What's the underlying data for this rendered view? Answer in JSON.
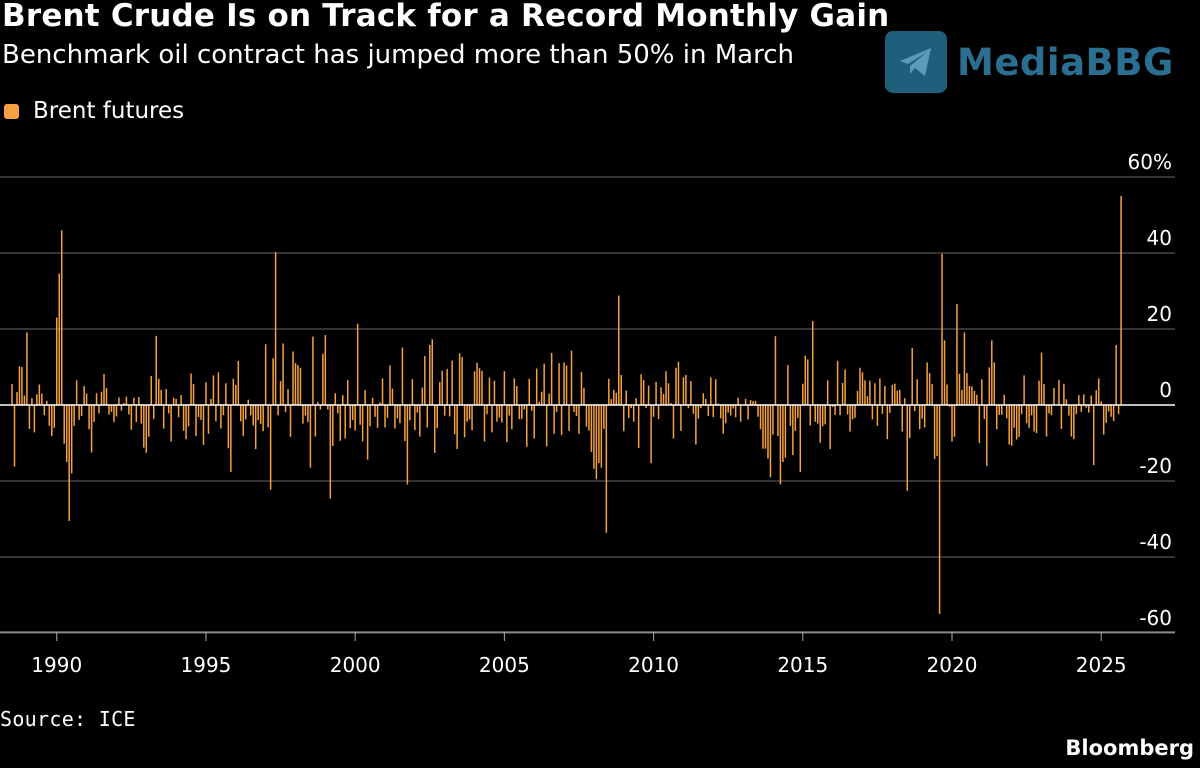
{
  "title": "Brent Crude Is on Track for a Record Monthly Gain",
  "subtitle": "Benchmark oil contract has jumped more than 50% in March",
  "source": "Source: ICE",
  "brand": "Bloomberg",
  "watermark": {
    "text": "MediaBBG",
    "icon": "telegram-plane-icon"
  },
  "colors": {
    "background": "#000000",
    "bar": "#f5a142",
    "grid": "#666666",
    "text": "#ffffff"
  },
  "chart_data": {
    "type": "bar",
    "title": "Brent Crude Is on Track for a Record Monthly Gain",
    "subtitle": "Benchmark oil contract has jumped more than 50% in March",
    "legend": {
      "position": "top-left",
      "entries": [
        "Brent futures"
      ]
    },
    "xlabel": "",
    "ylabel": "",
    "x_start": "1988-07",
    "x_end": "2026-03",
    "xlim": [
      1988.5,
      2026.3
    ],
    "ylim": [
      -65,
      60
    ],
    "yticks": [
      60,
      40,
      20,
      0,
      -20,
      -40,
      -60
    ],
    "ytick_labels": [
      "60%",
      "40",
      "20",
      "0",
      "-20",
      "-40",
      "-60"
    ],
    "xticks": [
      1990,
      1995,
      2000,
      2005,
      2010,
      2015,
      2020,
      2025
    ],
    "xtick_labels": [
      "1990",
      "1995",
      "2000",
      "2005",
      "2010",
      "2015",
      "2020",
      "2025"
    ],
    "grid": true,
    "series": [
      {
        "name": "Brent futures",
        "frequency": "monthly",
        "values": [
          5.5,
          -16.2,
          3.4,
          10.2,
          10.0,
          2.5,
          19.1,
          -6.3,
          1.8,
          -7.2,
          2.8,
          5.4,
          3.0,
          -2.7,
          1.1,
          -5.5,
          -8.2,
          -6.0,
          23.0,
          34.6,
          46.0,
          -10.2,
          -15.0,
          -30.5,
          -18.0,
          -5.5,
          6.5,
          -3.9,
          -2.9,
          5.0,
          3.0,
          -6.4,
          -12.5,
          -4.5,
          3.1,
          -2.2,
          3.5,
          8.2,
          4.5,
          -2.5,
          -1.8,
          -4.5,
          -3.0,
          2.0,
          -1.5,
          0.5,
          2.2,
          -2.5,
          -6.5,
          1.9,
          -4.5,
          2.1,
          -4.9,
          -11.2,
          -12.6,
          -8.4,
          7.6,
          -3.7,
          18.2,
          6.9,
          4.0,
          -6.2,
          4.2,
          -2.2,
          -9.6,
          1.9,
          1.6,
          -3.2,
          2.6,
          -6.8,
          -9.0,
          -5.6,
          8.3,
          5.5,
          -8.2,
          -3.2,
          -3.9,
          -10.5,
          6.0,
          -7.6,
          1.6,
          7.8,
          -4.3,
          8.6,
          -6.2,
          -2.7,
          5.7,
          -11.4,
          -17.6,
          6.9,
          5.3,
          11.6,
          -4.3,
          -8.2,
          -3.8,
          1.4,
          -2.7,
          -5.4,
          -11.6,
          -4.0,
          -5.0,
          -6.9,
          16.0,
          -5.9,
          -22.3,
          12.3,
          40.2,
          -2.7,
          6.3,
          16.2,
          -1.9,
          4.2,
          -8.4,
          14.1,
          11.0,
          10.5,
          9.8,
          -4.9,
          -2.8,
          -4.5,
          -16.5,
          18.0,
          -8.3,
          0.8,
          -1.2,
          13.5,
          18.4,
          -1.2,
          -24.6,
          -10.8,
          3.1,
          -2.2,
          -9.4,
          2.6,
          -8.8,
          6.6,
          -6.1,
          -4.0,
          -6.7,
          21.4,
          -5.2,
          -9.6,
          3.9,
          -14.4,
          -5.6,
          1.9,
          -3.1,
          -6.0,
          0.7,
          7.0,
          -5.9,
          -3.4,
          10.4,
          4.3,
          -6.2,
          -3.5,
          -4.8,
          15.1,
          -9.5,
          -20.9,
          -4.0,
          6.8,
          -6.6,
          -2.0,
          -8.3,
          4.6,
          12.9,
          -5.9,
          15.8,
          17.3,
          -12.6,
          -6.1,
          6.0,
          9.0,
          -2.8,
          9.5,
          -3.0,
          11.7,
          -7.7,
          -11.6,
          13.6,
          12.6,
          -8.5,
          -4.4,
          -3.8,
          -6.6,
          8.9,
          11.1,
          9.7,
          9.0,
          -9.6,
          -2.4,
          7.2,
          -7.2,
          6.4,
          -4.4,
          -3.3,
          -4.6,
          8.9,
          -9.8,
          -2.8,
          -6.4,
          7.0,
          5.0,
          -3.7,
          -3.7,
          -1.2,
          -11.0,
          6.9,
          -1.5,
          -8.8,
          9.6,
          0.8,
          3.5,
          10.9,
          -10.9,
          3.0,
          13.7,
          -7.6,
          -1.8,
          11.0,
          -7.9,
          11.2,
          10.4,
          -6.8,
          14.3,
          -1.8,
          -2.9,
          -7.6,
          8.7,
          4.5,
          -5.7,
          -6.7,
          -12.4,
          -16.8,
          -19.5,
          -15.3,
          -16.5,
          -6.3,
          -33.6,
          6.9,
          1.6,
          4.0,
          3.2,
          28.8,
          7.9,
          -6.9,
          3.8,
          -3.4,
          -0.8,
          -4.4,
          1.8,
          -11.3,
          8.1,
          6.6,
          -0.8,
          5.1,
          -15.3,
          -3.1,
          6.1,
          -3.7,
          4.7,
          2.9,
          8.9,
          5.7,
          0.5,
          -8.8,
          9.8,
          11.4,
          -6.8,
          7.3,
          7.9,
          -0.8,
          6.3,
          -2.3,
          -10.4,
          -3.6,
          -0.8,
          3.1,
          1.6,
          -2.9,
          7.3,
          -3.2,
          6.8,
          0.4,
          -3.5,
          -7.6,
          -4.8,
          -2.0,
          -2.8,
          -0.9,
          -3.2,
          1.9,
          -4.4,
          -0.1,
          1.6,
          -3.8,
          1.3,
          1.0,
          1.1,
          -3.1,
          -6.4,
          -11.5,
          -11.5,
          -14.1,
          -19.0,
          -7.8,
          18.1,
          -8.2,
          -20.9,
          -15.0,
          -13.9,
          10.5,
          -5.5,
          -13.2,
          -6.8,
          -3.4,
          -17.6,
          5.6,
          13.0,
          12.0,
          -5.4,
          22.1,
          -4.4,
          -4.9,
          -9.9,
          -5.6,
          -5.1,
          6.5,
          -11.6,
          -0.5,
          -2.6,
          11.6,
          -2.7,
          5.8,
          9.4,
          -2.5,
          -7.0,
          -3.8,
          -3.4,
          3.7,
          9.8,
          8.6,
          6.5,
          2.3,
          6.4,
          -3.8,
          5.7,
          -5.5,
          7.0,
          -2.3,
          5.0,
          -9.0,
          -2.1,
          5.3,
          5.6,
          3.8,
          4.0,
          -7.0,
          1.8,
          -22.6,
          -8.7,
          15.0,
          -1.6,
          6.8,
          -6.4,
          -3.6,
          -5.9,
          11.2,
          8.4,
          5.5,
          -14.2,
          -13.4,
          -55.0,
          39.8,
          17.0,
          5.4,
          -0.5,
          -9.6,
          -8.4,
          26.6,
          8.2,
          4.0,
          19.1,
          8.4,
          5.0,
          4.9,
          3.7,
          2.7,
          -10.0,
          6.8,
          -3.7,
          -16.0,
          9.9,
          17.0,
          11.2,
          -6.4,
          -2.6,
          -2.6,
          2.7,
          -3.5,
          -10.4,
          -10.7,
          -6.0,
          -9.1,
          -8.4,
          -2.4,
          7.8,
          -4.8,
          -6.0,
          -2.7,
          -7.0,
          -7.4,
          6.4,
          13.8,
          5.5,
          -8.3,
          -2.2,
          -2.7,
          4.5,
          -0.1,
          6.6,
          -6.3,
          5.6,
          1.5,
          -2.8,
          -8.3,
          -9.0,
          -2.4,
          2.6,
          -1.8,
          2.8,
          -0.7,
          -2.0,
          2.5,
          -15.8,
          3.9,
          7.0,
          1.0,
          -7.8,
          -4.7,
          -1.7,
          -3.1,
          -4.2,
          15.8,
          -2.4,
          55.0
        ]
      }
    ],
    "annotations": []
  }
}
